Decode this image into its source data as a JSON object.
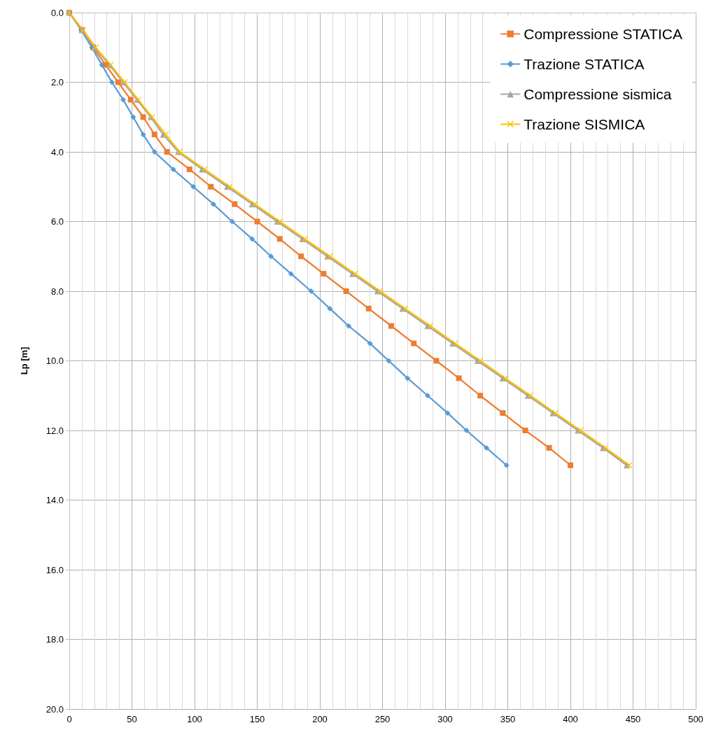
{
  "chart_data": {
    "type": "line",
    "ylabel": "Lp [m]",
    "xlim": [
      0,
      500
    ],
    "xticks": [
      0,
      50,
      100,
      150,
      200,
      250,
      300,
      350,
      400,
      450,
      500
    ],
    "ylim": [
      20,
      0
    ],
    "yticks": [
      {
        "value": 0,
        "label": "0.0"
      },
      {
        "value": 2,
        "label": "2.0"
      },
      {
        "value": 4,
        "label": "4.0"
      },
      {
        "value": 6,
        "label": "6.0"
      },
      {
        "value": 8,
        "label": "8.0"
      },
      {
        "value": 10,
        "label": "10.0"
      },
      {
        "value": 12,
        "label": "12.0"
      },
      {
        "value": 14,
        "label": "14.0"
      },
      {
        "value": 16,
        "label": "16.0"
      },
      {
        "value": 18,
        "label": "18.0"
      },
      {
        "value": 20,
        "label": "20.0"
      }
    ],
    "grid": true,
    "legend": "top right",
    "line_style": "solid",
    "series": [
      {
        "name": "Compressione STATICA",
        "color": "#ed7d31",
        "marker": "square",
        "x": [
          0,
          10,
          19,
          29,
          39,
          49,
          59,
          68,
          78,
          96,
          113,
          132,
          150,
          168,
          185,
          203,
          221,
          239,
          257,
          275,
          293,
          311,
          328,
          346,
          364,
          383,
          400
        ],
        "values": [
          0,
          0.5,
          1,
          1.5,
          2,
          2.5,
          3,
          3.5,
          4,
          4.5,
          5,
          5.5,
          6,
          6.5,
          7,
          7.5,
          8,
          8.5,
          9,
          9.5,
          10,
          10.5,
          11,
          11.5,
          12,
          12.5,
          13
        ]
      },
      {
        "name": "Trazione STATICA",
        "color": "#5b9bd5",
        "marker": "diamond",
        "x": [
          0,
          9.5,
          18,
          26,
          34,
          43,
          51,
          59,
          68,
          83,
          99,
          115,
          130,
          146,
          161,
          177,
          193,
          208,
          223,
          240,
          255,
          270,
          286,
          302,
          317,
          333,
          349
        ],
        "values": [
          0,
          0.5,
          1,
          1.5,
          2,
          2.5,
          3,
          3.5,
          4,
          4.5,
          5,
          5.5,
          6,
          6.5,
          7,
          7.5,
          8,
          8.5,
          9,
          9.5,
          10,
          10.5,
          11,
          11.5,
          12,
          12.5,
          13
        ]
      },
      {
        "name": "Compressione sismica",
        "color": "#a5a5a5",
        "marker": "triangle",
        "x": [
          0,
          10,
          20,
          32,
          43,
          54,
          65,
          75,
          87,
          106,
          126,
          146,
          166,
          186,
          206,
          226,
          246,
          266,
          286,
          306,
          326,
          346,
          366,
          386,
          406,
          426,
          445
        ],
        "values": [
          0,
          0.5,
          1,
          1.5,
          2,
          2.5,
          3,
          3.5,
          4,
          4.5,
          5,
          5.5,
          6,
          6.5,
          7,
          7.5,
          8,
          8.5,
          9,
          9.5,
          10,
          10.5,
          11,
          11.5,
          12,
          12.5,
          13
        ]
      },
      {
        "name": "Trazione SISMICA",
        "color": "#ffc000",
        "marker": "cross",
        "x": [
          0,
          11,
          21,
          33,
          44,
          55,
          66,
          77,
          88,
          108,
          128,
          148,
          168,
          188,
          208,
          228,
          248,
          268,
          288,
          308,
          328,
          348,
          368,
          388,
          408,
          428,
          447
        ],
        "values": [
          0,
          0.5,
          1,
          1.5,
          2,
          2.5,
          3,
          3.5,
          4,
          4.5,
          5,
          5.5,
          6,
          6.5,
          7,
          7.5,
          8,
          8.5,
          9,
          9.5,
          10,
          10.5,
          11,
          11.5,
          12,
          12.5,
          13
        ]
      }
    ]
  }
}
